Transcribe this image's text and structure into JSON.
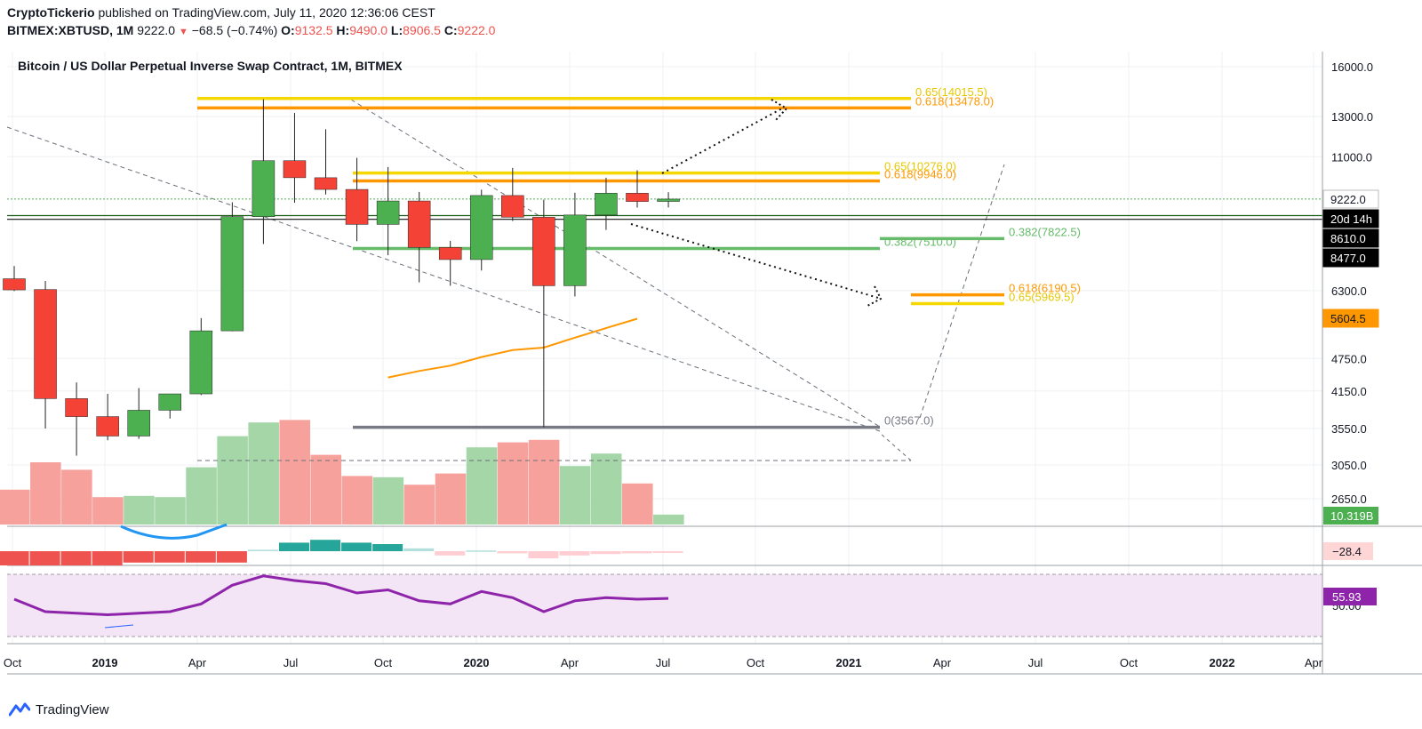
{
  "header": {
    "publisher": "CryptoTickerio",
    "published_text": "published on TradingView.com, July 11, 2020 12:36:06 CEST",
    "symbol": "BITMEX:XBTUSD, 1M",
    "last": "9222.0",
    "change": "−68.5 (−0.74%)",
    "o_label": "O:",
    "o_val": "9132.5",
    "h_label": "H:",
    "h_val": "9490.0",
    "l_label": "L:",
    "l_val": "8906.5",
    "c_label": "C:",
    "c_val": "9222.0"
  },
  "footer": {
    "brand": "TradingView"
  },
  "chart_data": {
    "type": "candlestick",
    "title": "Bitcoin / US Dollar Perpetual Inverse Swap Contract, 1M, BITMEX",
    "y_scale": "log",
    "y_range": [
      2400,
      17000
    ],
    "y_ticks": [
      16000,
      13000,
      11000,
      6300,
      4750,
      4150,
      3550,
      3050,
      2650
    ],
    "y_tick_labels": [
      "16000.0",
      "13000.0",
      "11000.0",
      "6300.0",
      "4750.0",
      "4150.0",
      "3550.0",
      "3050.0",
      "2650.0"
    ],
    "x_ticks": [
      "Oct",
      "2019",
      "Apr",
      "Jul",
      "Oct",
      "2020",
      "Apr",
      "Jul",
      "Oct",
      "2021",
      "Apr",
      "Jul",
      "Oct",
      "2022",
      "Apr"
    ],
    "x_tick_bold": [
      false,
      true,
      false,
      false,
      false,
      true,
      false,
      false,
      false,
      true,
      false,
      false,
      false,
      true,
      false
    ],
    "price_boxes": [
      {
        "label": "9222.0",
        "value": 9222,
        "bg": "#ffffff",
        "fg": "#131722",
        "border": "#bbbbbb"
      },
      {
        "label": "20d 14h",
        "value": 8990,
        "bg": "#000000",
        "fg": "#ffffff"
      },
      {
        "label": "8610.0",
        "value": 8610,
        "bg": "#000000",
        "fg": "#ffffff"
      },
      {
        "label": "8477.0",
        "value": 8477,
        "bg": "#000000",
        "fg": "#ffffff"
      },
      {
        "label": "5604.5",
        "value": 5604.5,
        "bg": "#ff9800",
        "fg": "#131722"
      }
    ],
    "candles": [
      {
        "month": "2018-10",
        "o": 6620,
        "h": 6980,
        "l": 6290,
        "c": 6320
      },
      {
        "month": "2018-11",
        "o": 6330,
        "h": 6560,
        "l": 3550,
        "c": 4020
      },
      {
        "month": "2018-12",
        "o": 4020,
        "h": 4300,
        "l": 3170,
        "c": 3730
      },
      {
        "month": "2019-01",
        "o": 3730,
        "h": 4100,
        "l": 3380,
        "c": 3440
      },
      {
        "month": "2019-02",
        "o": 3440,
        "h": 4200,
        "l": 3400,
        "c": 3830
      },
      {
        "month": "2019-03",
        "o": 3830,
        "h": 4100,
        "l": 3700,
        "c": 4100
      },
      {
        "month": "2019-04",
        "o": 4100,
        "h": 5620,
        "l": 4080,
        "c": 5330
      },
      {
        "month": "2019-05",
        "o": 5330,
        "h": 9100,
        "l": 5320,
        "c": 8570
      },
      {
        "month": "2019-06",
        "o": 8570,
        "h": 13970,
        "l": 7650,
        "c": 10820
      },
      {
        "month": "2019-07",
        "o": 10820,
        "h": 13200,
        "l": 9080,
        "c": 10080
      },
      {
        "month": "2019-08",
        "o": 10080,
        "h": 12330,
        "l": 9400,
        "c": 9600
      },
      {
        "month": "2019-09",
        "o": 9600,
        "h": 10950,
        "l": 7740,
        "c": 8300
      },
      {
        "month": "2019-10",
        "o": 8300,
        "h": 10540,
        "l": 7300,
        "c": 9150
      },
      {
        "month": "2019-11",
        "o": 9150,
        "h": 9500,
        "l": 6520,
        "c": 7540
      },
      {
        "month": "2019-12",
        "o": 7540,
        "h": 7750,
        "l": 6430,
        "c": 7170
      },
      {
        "month": "2020-01",
        "o": 7170,
        "h": 9590,
        "l": 6850,
        "c": 9360
      },
      {
        "month": "2020-02",
        "o": 9360,
        "h": 10500,
        "l": 8420,
        "c": 8550
      },
      {
        "month": "2020-03",
        "o": 8550,
        "h": 9200,
        "l": 3570,
        "c": 6430
      },
      {
        "month": "2020-04",
        "o": 6430,
        "h": 9470,
        "l": 6150,
        "c": 8630
      },
      {
        "month": "2020-05",
        "o": 8630,
        "h": 10080,
        "l": 8110,
        "c": 9450
      },
      {
        "month": "2020-06",
        "o": 9450,
        "h": 10400,
        "l": 8900,
        "c": 9130
      },
      {
        "month": "2020-07",
        "o": 9132.5,
        "h": 9490,
        "l": 8906.5,
        "c": 9222
      }
    ],
    "ma_line": {
      "color": "#ff9800",
      "start_index": 12,
      "values": [
        4390,
        4510,
        4610,
        4780,
        4920,
        4970,
        5180,
        5390,
        5604.5
      ]
    },
    "volume": {
      "label": "10.319B",
      "values": [
        0.28,
        0.5,
        0.44,
        0.22,
        0.23,
        0.22,
        0.46,
        0.71,
        0.82,
        0.84,
        0.56,
        0.39,
        0.38,
        0.32,
        0.41,
        0.62,
        0.66,
        0.68,
        0.47,
        0.57,
        0.33,
        0.08
      ]
    },
    "fib_levels": [
      {
        "ratio": "0.65",
        "label": "0.65(14015.5)",
        "value": 14015.5,
        "color": "#f5d800"
      },
      {
        "ratio": "0.618",
        "label": "0.618(13478.0)",
        "value": 13478,
        "color": "#ff9800"
      },
      {
        "ratio": "0.65",
        "label": "0.65(10276.0)",
        "value": 10276,
        "color": "#f5d800"
      },
      {
        "ratio": "0.618",
        "label": "0.618(9946.0)",
        "value": 9946,
        "color": "#ff9800"
      },
      {
        "ratio": "0.382",
        "label": "0.382(7510.0)",
        "value": 7510,
        "color": "#66bb6a"
      },
      {
        "ratio": "0.382",
        "label": "0.382(7822.5)",
        "value": 7822.5,
        "color": "#66bb6a"
      },
      {
        "ratio": "0.618",
        "label": "0.618(6190.5)",
        "value": 6190.5,
        "color": "#ff9800"
      },
      {
        "ratio": "0.65",
        "label": "0.65(5969.5)",
        "value": 5969.5,
        "color": "#f5d800"
      },
      {
        "ratio": "0",
        "label": "0(3567.0)",
        "value": 3567,
        "color": "#787b86"
      }
    ],
    "macd": {
      "label": "−28.4",
      "histogram": [
        -1,
        -1,
        -1,
        -1,
        -0.8,
        -0.8,
        -0.8,
        -0.8,
        0.1,
        0.6,
        0.8,
        0.6,
        0.5,
        0.2,
        -0.3,
        0.05,
        -0.15,
        -0.5,
        -0.3,
        -0.2,
        -0.15,
        -0.12
      ]
    },
    "rsi": {
      "label": "55.93",
      "values": [
        54,
        46,
        45,
        44,
        45,
        46,
        51,
        63,
        69,
        66,
        64,
        58,
        60,
        53,
        51,
        59,
        55,
        46,
        53,
        55,
        54,
        54.5
      ],
      "upper_band": 70,
      "lower_band": 30
    }
  }
}
